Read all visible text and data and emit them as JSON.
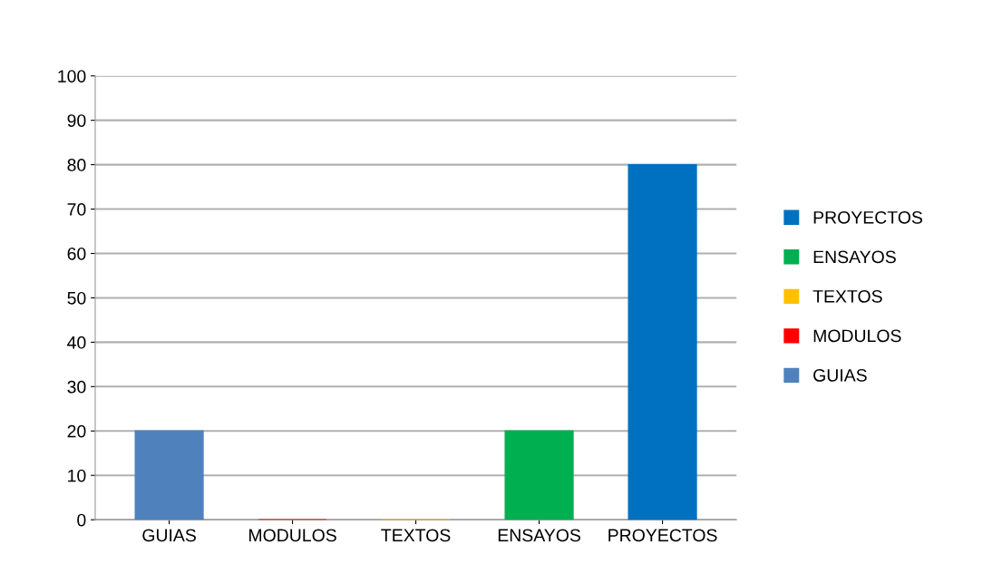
{
  "chart_data": {
    "type": "bar",
    "categories": [
      "GUIAS",
      "MODULOS",
      "TEXTOS",
      "ENSAYOS",
      "PROYECTOS"
    ],
    "series": [
      {
        "name": "GUIAS",
        "color": "#4f81bd",
        "values": [
          20,
          null,
          null,
          null,
          null
        ]
      },
      {
        "name": "MODULOS",
        "color": "#ff0000",
        "values": [
          null,
          0,
          null,
          null,
          null
        ]
      },
      {
        "name": "TEXTOS",
        "color": "#ffc000",
        "values": [
          null,
          null,
          0,
          null,
          null
        ]
      },
      {
        "name": "ENSAYOS",
        "color": "#00b050",
        "values": [
          null,
          null,
          null,
          20,
          null
        ]
      },
      {
        "name": "PROYECTOS",
        "color": "#0070c0",
        "values": [
          null,
          null,
          null,
          null,
          80
        ]
      }
    ],
    "ylim": [
      0,
      100
    ],
    "yticks": [
      0,
      10,
      20,
      30,
      40,
      50,
      60,
      70,
      80,
      90,
      100
    ],
    "grid": "y",
    "legend": "right"
  }
}
